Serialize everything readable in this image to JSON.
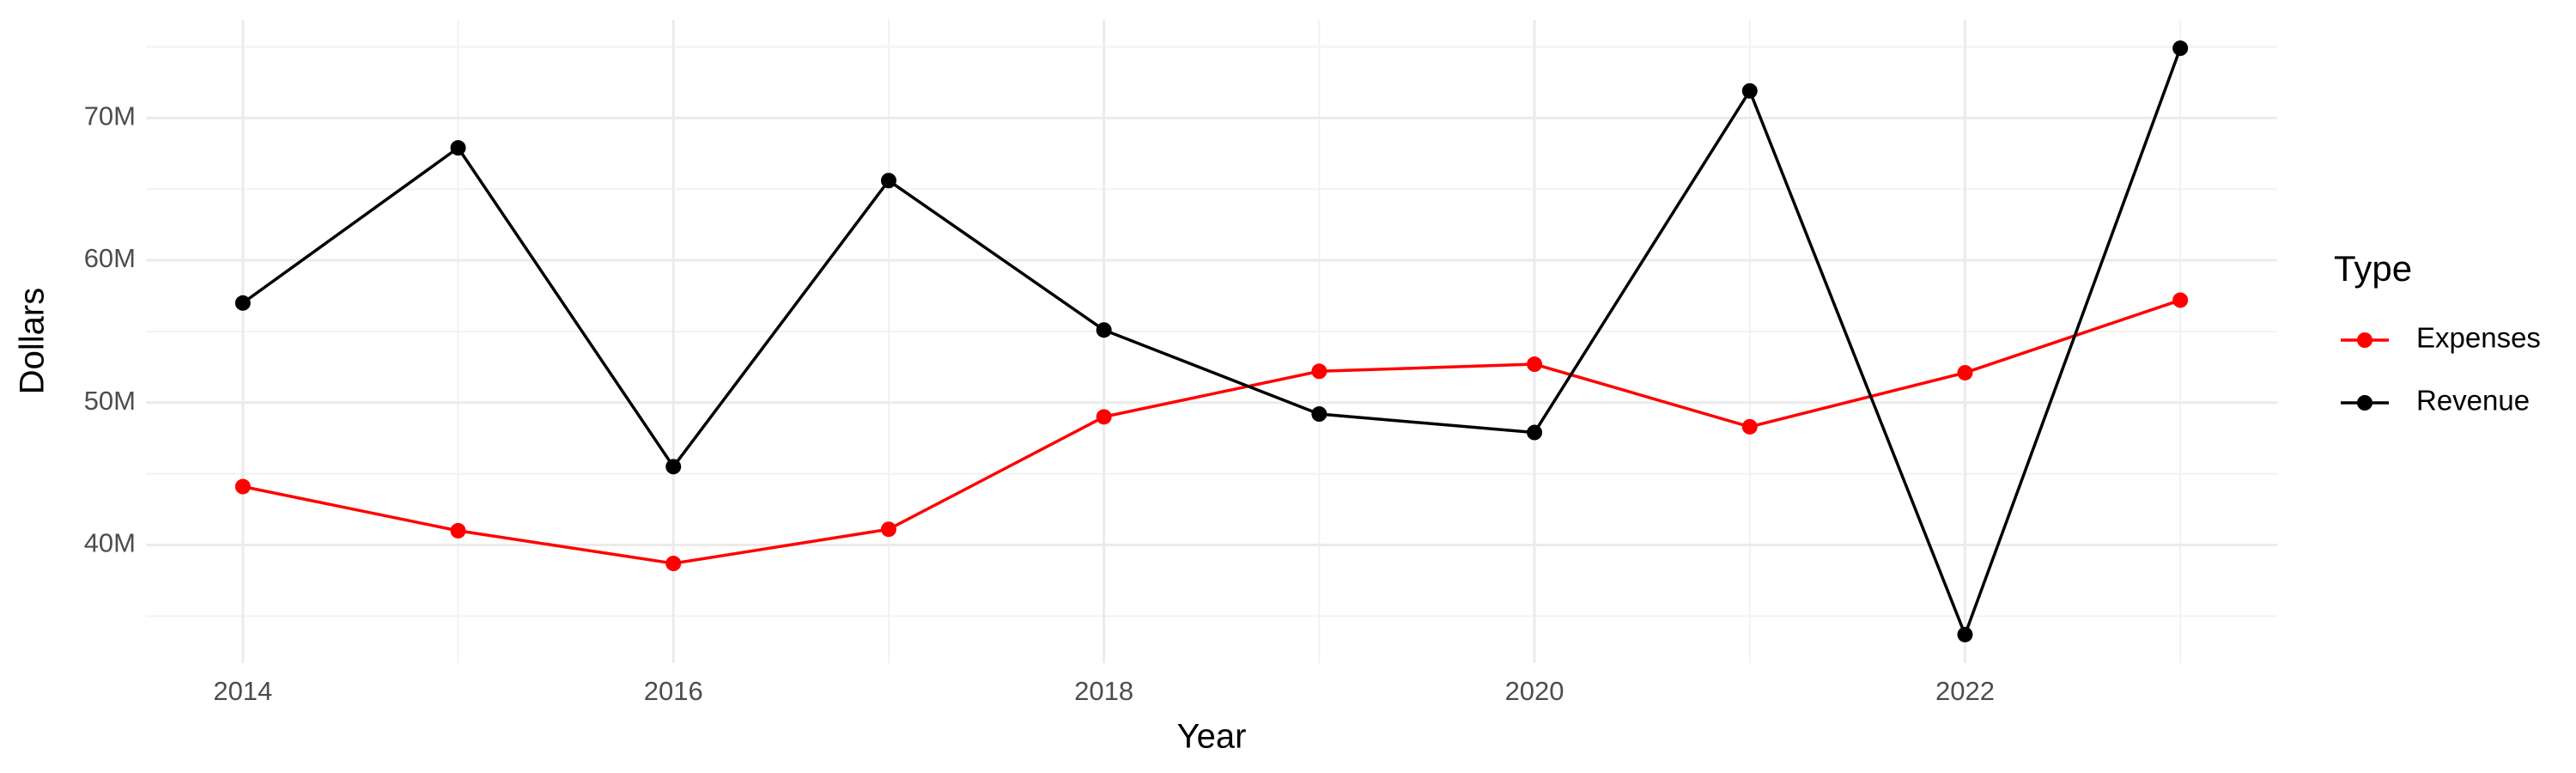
{
  "chart_data": {
    "type": "line",
    "x_label": "Year",
    "y_label": "Dollars",
    "legend_title": "Type",
    "legend_position": "right",
    "grid": true,
    "x": [
      2014,
      2015,
      2016,
      2017,
      2018,
      2019,
      2020,
      2021,
      2022,
      2023
    ],
    "xlim": [
      2013.55,
      2023.45
    ],
    "xticks": [
      2014,
      2016,
      2018,
      2020,
      2022
    ],
    "ylim": [
      31700000,
      76900000
    ],
    "yticks": [
      {
        "value": 40000000,
        "label": "40M"
      },
      {
        "value": 50000000,
        "label": "50M"
      },
      {
        "value": 60000000,
        "label": "60M"
      },
      {
        "value": 70000000,
        "label": "70M"
      }
    ],
    "series": [
      {
        "name": "Expenses",
        "color": "#ff0000",
        "values": [
          44100000,
          41000000,
          38700000,
          41100000,
          49000000,
          52200000,
          52700000,
          48300000,
          52100000,
          57200000
        ]
      },
      {
        "name": "Revenue",
        "color": "#000000",
        "values": [
          57000000,
          67900000,
          45500000,
          65600000,
          55100000,
          49200000,
          47900000,
          71900000,
          33700000,
          74900000
        ]
      }
    ]
  }
}
